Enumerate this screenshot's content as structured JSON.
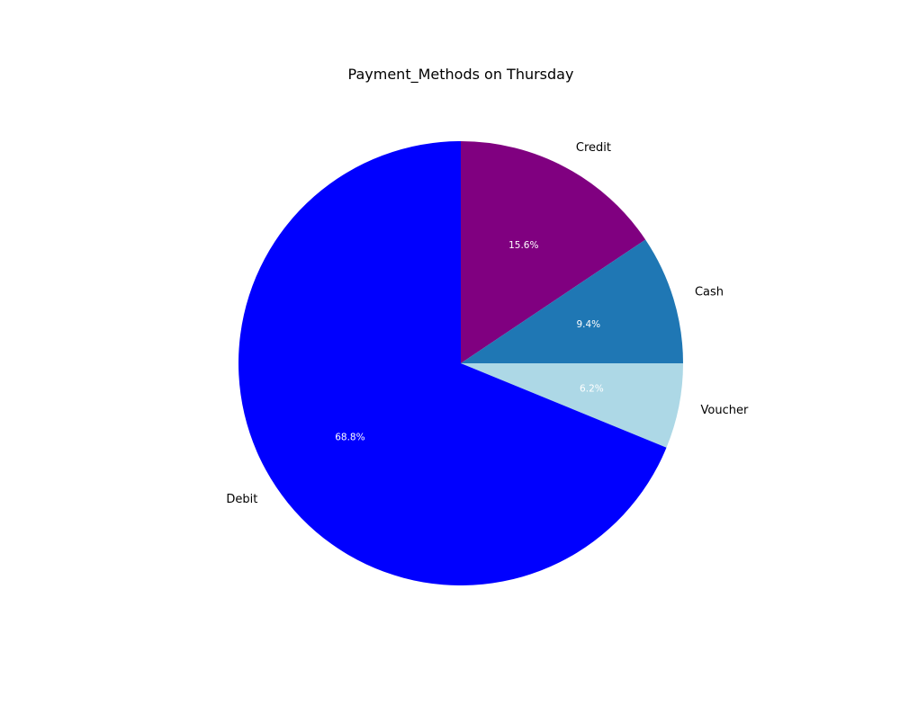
{
  "chart_data": {
    "type": "pie",
    "title": "Payment_Methods on Thursday",
    "slices": [
      {
        "label": "Credit",
        "value": 15.6,
        "pct_label": "15.6%",
        "color": "#800080"
      },
      {
        "label": "Cash",
        "value": 9.4,
        "pct_label": "9.4%",
        "color": "#1f77b4"
      },
      {
        "label": "Voucher",
        "value": 6.2,
        "pct_label": "6.2%",
        "color": "#add8e6"
      },
      {
        "label": "Debit",
        "value": 68.8,
        "pct_label": "68.8%",
        "color": "#0000ff"
      }
    ],
    "start_angle": 90,
    "direction": "clockwise",
    "legend": "none"
  }
}
